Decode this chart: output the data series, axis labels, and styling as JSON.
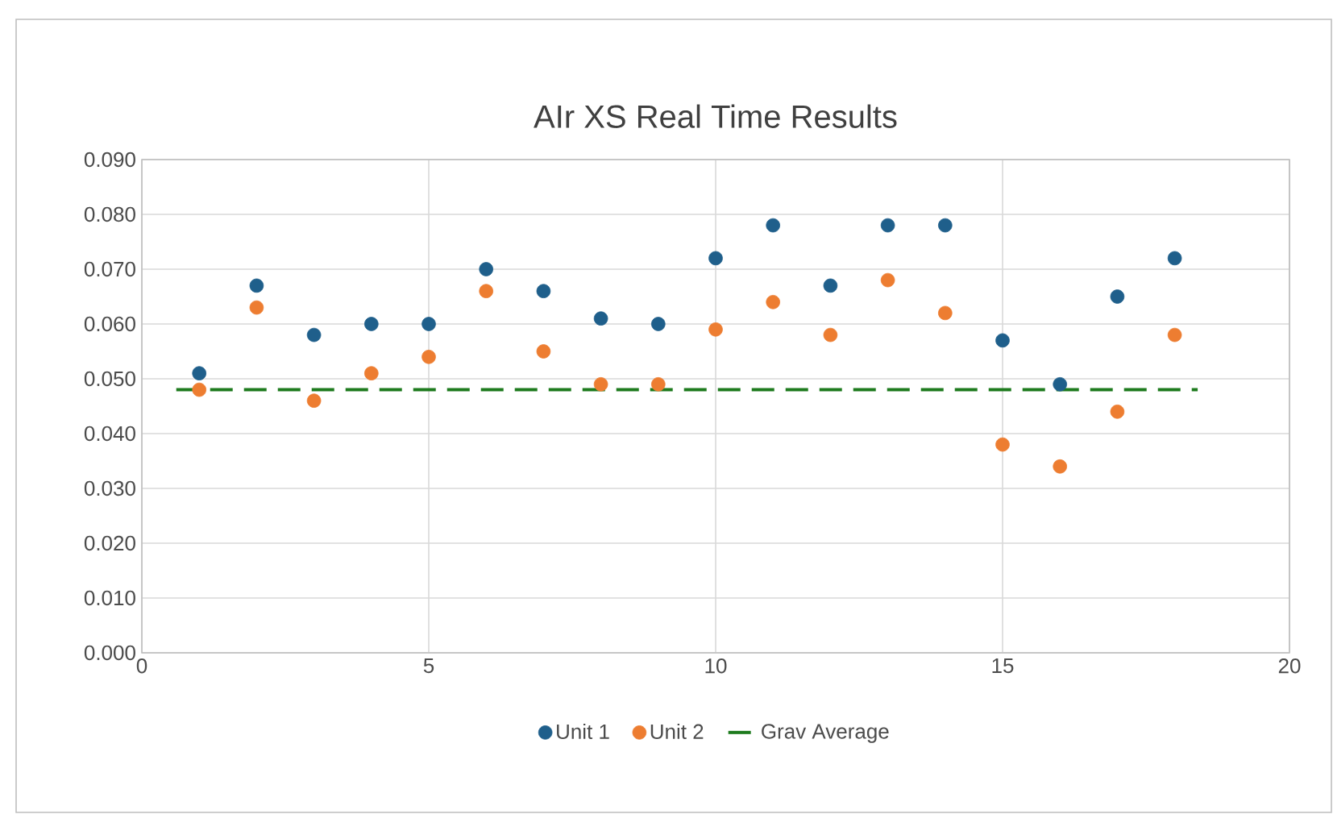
{
  "chart_data": {
    "type": "scatter",
    "title": "AIr XS Real Time Results",
    "x": [
      1,
      2,
      3,
      4,
      5,
      6,
      7,
      8,
      9,
      10,
      11,
      12,
      13,
      14,
      15,
      16,
      17,
      18
    ],
    "series": [
      {
        "name": "Unit 1",
        "color": "#1f5f8b",
        "marker": "circle",
        "values": [
          0.051,
          0.067,
          0.058,
          0.06,
          0.06,
          0.07,
          0.066,
          0.061,
          0.06,
          0.072,
          0.078,
          0.067,
          0.078,
          0.078,
          0.057,
          0.049,
          0.065,
          0.072
        ]
      },
      {
        "name": "Unit 2",
        "color": "#ed7d31",
        "marker": "circle",
        "values": [
          0.048,
          0.063,
          0.046,
          0.051,
          0.054,
          0.066,
          0.055,
          0.049,
          0.049,
          0.059,
          0.064,
          0.058,
          0.068,
          0.062,
          0.038,
          0.034,
          0.044,
          0.058
        ]
      },
      {
        "name": "Grav Average",
        "type": "line",
        "color": "#1e7b1e",
        "marker": "none",
        "line_style": "dashed",
        "x": [
          0.6,
          18.4
        ],
        "values": [
          0.048,
          0.048
        ]
      }
    ],
    "xlim": [
      0,
      20
    ],
    "xticks": [
      0,
      5,
      10,
      15,
      20
    ],
    "ylim": [
      0,
      0.09
    ],
    "yticks": [
      {
        "value": 0,
        "label": "0.000"
      },
      {
        "value": 0.01,
        "label": "0.010"
      },
      {
        "value": 0.02,
        "label": "0.020"
      },
      {
        "value": 0.03,
        "label": "0.030"
      },
      {
        "value": 0.04,
        "label": "0.040"
      },
      {
        "value": 0.05,
        "label": "0.050"
      },
      {
        "value": 0.06,
        "label": "0.060"
      },
      {
        "value": 0.07,
        "label": "0.070"
      },
      {
        "value": 0.08,
        "label": "0.080"
      },
      {
        "value": 0.09,
        "label": "0.090"
      }
    ],
    "grid": true,
    "legend": "bottom"
  }
}
